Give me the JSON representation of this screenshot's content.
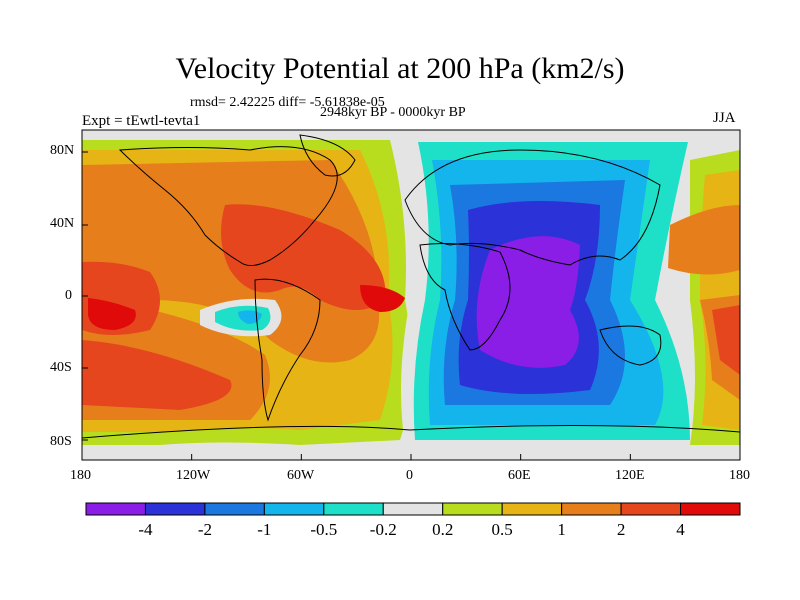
{
  "title": "Velocity Potential at 200 hPa (km2/s)",
  "stats": "rmsd= 2.42225 diff= -5.61838e-05",
  "experiment": "Expt = tEwtl-tevta1",
  "period": "2948kyr BP - 0000kyr BP",
  "season": "JJA",
  "lon_ticks": [
    "180",
    "120W",
    "60W",
    "0",
    "60E",
    "120E",
    "180"
  ],
  "lat_ticks": [
    "80N",
    "40N",
    "0",
    "40S",
    "80S"
  ],
  "colorbar": {
    "labels": [
      "-4",
      "-2",
      "-1",
      "-0.5",
      "-0.2",
      "0.2",
      "0.5",
      "1",
      "2",
      "4"
    ],
    "colors": [
      "#8a1ee6",
      "#2a32d8",
      "#1a78e0",
      "#14b4ec",
      "#1ee0c8",
      "#e4e4e4",
      "#b8dc1e",
      "#e6b414",
      "#e67e1c",
      "#e6461e",
      "#e00a0a"
    ]
  },
  "chart_data": {
    "type": "heatmap",
    "title": "Velocity Potential at 200 hPa (km2/s)",
    "variable": "velocity potential",
    "level": "200 hPa",
    "units": "km2/s",
    "season": "JJA",
    "x_range": [
      -180,
      180
    ],
    "y_range": [
      -90,
      90
    ],
    "contour_levels": [
      -4,
      -2,
      -1,
      -0.5,
      -0.2,
      0.2,
      0.5,
      1,
      2,
      4
    ],
    "features": [
      {
        "name": "negative center (Africa / Indian Ocean)",
        "lon": 70,
        "lat": 5,
        "value": "< -4"
      },
      {
        "name": "positive center (central Pacific)",
        "lon": -170,
        "lat": -10,
        "value": "> 4"
      },
      {
        "name": "positive center (tropical Atlantic)",
        "lon": -10,
        "lat": 0,
        "value": "> 4"
      },
      {
        "name": "negative pocket (eastern Pacific)",
        "lon": -85,
        "lat": -10,
        "value": "-1 to -0.5"
      },
      {
        "name": "positive region (western Pacific)",
        "lon": 170,
        "lat": 30,
        "value": "2 to 4"
      }
    ]
  }
}
